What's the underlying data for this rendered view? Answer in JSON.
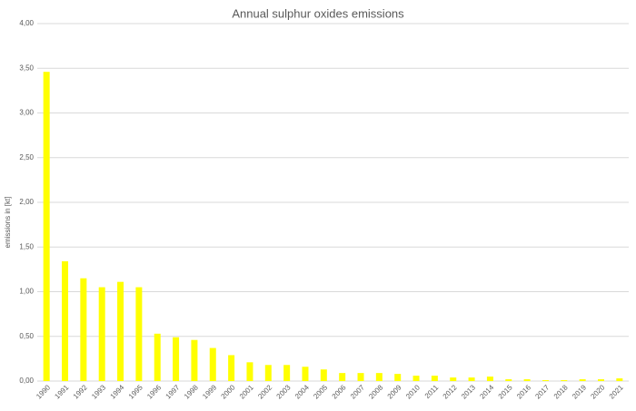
{
  "chart_data": {
    "type": "bar",
    "title": "Annual sulphur oxides emissions",
    "y_label": "emissions in [kt]",
    "categories": [
      "1990",
      "1991",
      "1992",
      "1993",
      "1994",
      "1995",
      "1996",
      "1997",
      "1998",
      "1999",
      "2000",
      "2001",
      "2002",
      "2003",
      "2004",
      "2005",
      "2006",
      "2007",
      "2008",
      "2009",
      "2010",
      "2011",
      "2012",
      "2013",
      "2014",
      "2015",
      "2016",
      "2017",
      "2018",
      "2019",
      "2020",
      "2021"
    ],
    "values": [
      3.46,
      1.34,
      1.15,
      1.05,
      1.11,
      1.05,
      0.53,
      0.49,
      0.46,
      0.37,
      0.29,
      0.21,
      0.18,
      0.18,
      0.16,
      0.13,
      0.09,
      0.09,
      0.09,
      0.08,
      0.06,
      0.06,
      0.04,
      0.04,
      0.05,
      0.02,
      0.02,
      0.01,
      0.01,
      0.02,
      0.02,
      0.03
    ],
    "color": "#ffff00",
    "ylim": [
      0,
      4
    ],
    "yticks": [
      {
        "value": 0,
        "label": "0,00"
      },
      {
        "value": 0.5,
        "label": "0,50"
      },
      {
        "value": 1,
        "label": "1,00"
      },
      {
        "value": 1.5,
        "label": "1,50"
      },
      {
        "value": 2,
        "label": "2,00"
      },
      {
        "value": 2.5,
        "label": "2,50"
      },
      {
        "value": 3,
        "label": "3,00"
      },
      {
        "value": 3.5,
        "label": "3,50"
      },
      {
        "value": 4,
        "label": "4,00"
      }
    ],
    "grid": true
  }
}
